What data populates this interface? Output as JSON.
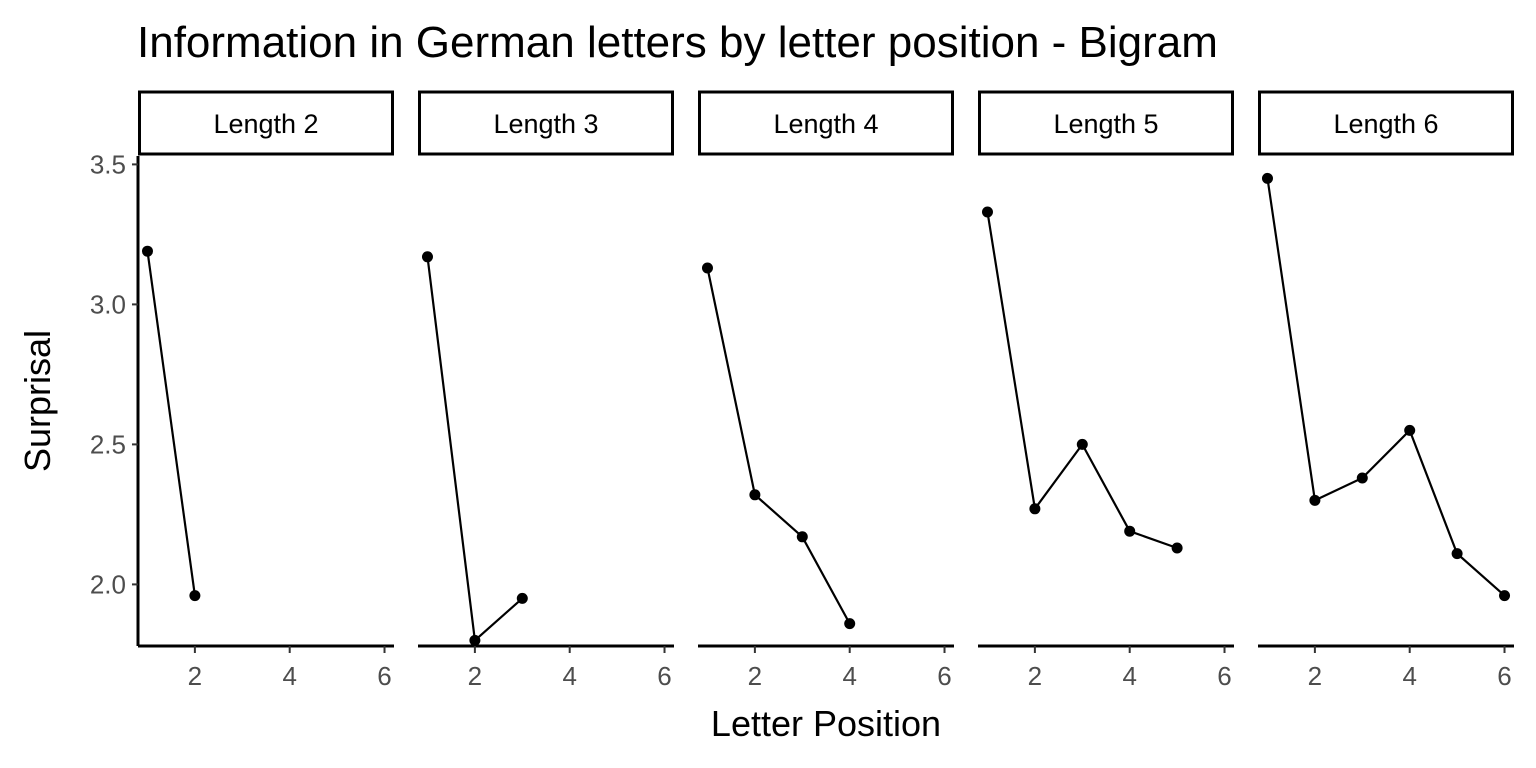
{
  "chart_data": {
    "type": "line",
    "title": "Information in German letters by letter position - Bigram",
    "xlabel": "Letter Position",
    "ylabel": "Surprisal",
    "xlim": [
      0.8,
      6.2
    ],
    "ylim": [
      1.78,
      3.53
    ],
    "xticks": [
      2,
      4,
      6
    ],
    "yticks": [
      2.0,
      2.5,
      3.0,
      3.5
    ],
    "ytick_labels": [
      "2.0",
      "2.5",
      "3.0",
      "3.5"
    ],
    "grid": false,
    "legend": "none",
    "facets": [
      {
        "label": "Length 2",
        "x": [
          1,
          2
        ],
        "y": [
          3.19,
          1.96
        ]
      },
      {
        "label": "Length 3",
        "x": [
          1,
          2,
          3
        ],
        "y": [
          3.17,
          1.8,
          1.95
        ]
      },
      {
        "label": "Length 4",
        "x": [
          1,
          2,
          3,
          4
        ],
        "y": [
          3.13,
          2.32,
          2.17,
          1.86
        ]
      },
      {
        "label": "Length 5",
        "x": [
          1,
          2,
          3,
          4,
          5
        ],
        "y": [
          3.33,
          2.27,
          2.5,
          2.19,
          2.13
        ]
      },
      {
        "label": "Length 6",
        "x": [
          1,
          2,
          3,
          4,
          5,
          6
        ],
        "y": [
          3.45,
          2.3,
          2.38,
          2.55,
          2.11,
          1.96
        ]
      }
    ]
  }
}
